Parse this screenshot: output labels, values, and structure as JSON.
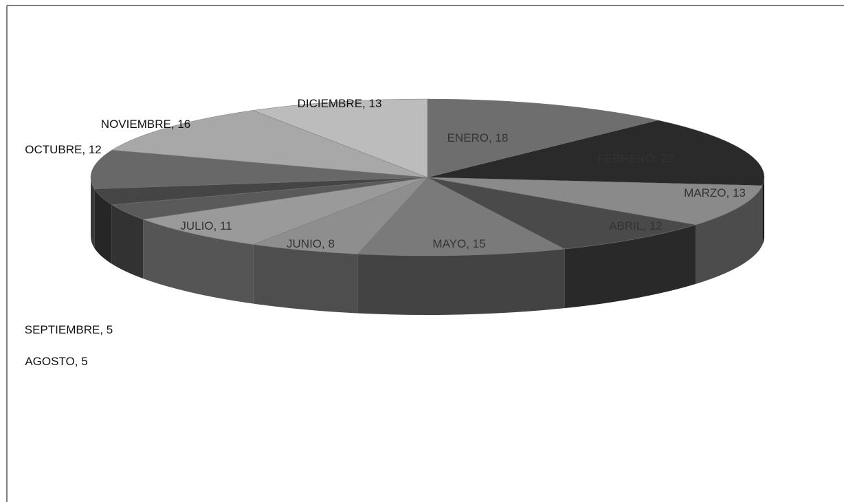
{
  "chart_data": {
    "type": "pie3d",
    "categories": [
      "ENERO",
      "FEBRERO",
      "MARZO",
      "ABRIL",
      "MAYO",
      "JUNIO",
      "JULIO",
      "AGOSTO",
      "SEPTIEMBRE",
      "OCTUBRE",
      "NOVIEMBRE",
      "DICIEMBRE"
    ],
    "values": [
      18,
      22,
      13,
      12,
      15,
      8,
      11,
      5,
      5,
      12,
      16,
      13
    ],
    "colors": [
      "#6e6e6e",
      "#2a2a2a",
      "#8a8a8a",
      "#4a4a4a",
      "#7a7a7a",
      "#8e8e8e",
      "#9a9a9a",
      "#5a5a5a",
      "#454545",
      "#686868",
      "#a8a8a8",
      "#bcbcbc"
    ]
  }
}
